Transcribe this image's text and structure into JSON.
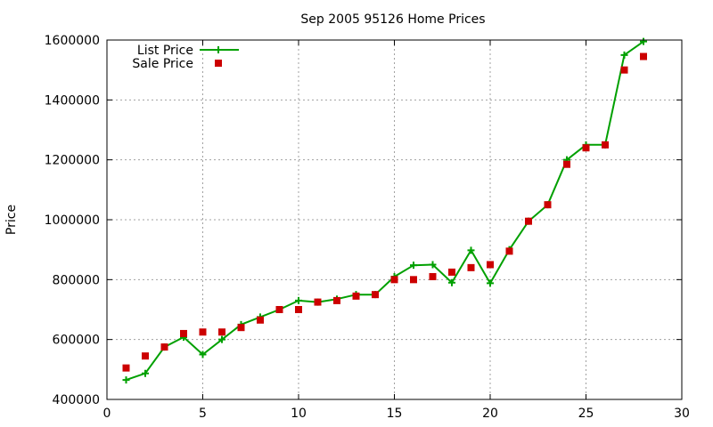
{
  "chart_data": {
    "type": "line",
    "title": "Sep 2005 95126 Home Prices",
    "xlabel": "",
    "ylabel": "Price",
    "xlim": [
      0,
      30
    ],
    "ylim": [
      400000,
      1600000
    ],
    "x_ticks": [
      0,
      5,
      10,
      15,
      20,
      25,
      30
    ],
    "y_ticks": [
      400000,
      600000,
      800000,
      1000000,
      1200000,
      1400000,
      1600000
    ],
    "grid": true,
    "legend_position": "top-left",
    "series": [
      {
        "name": "List Price",
        "style": "linespoints",
        "marker": "plus",
        "color": "#00a000",
        "x": [
          1,
          2,
          3,
          4,
          5,
          6,
          7,
          8,
          9,
          10,
          11,
          12,
          13,
          14,
          15,
          16,
          17,
          18,
          19,
          20,
          21,
          22,
          23,
          24,
          25,
          26,
          27,
          28
        ],
        "y": [
          465000,
          487000,
          575000,
          608000,
          550000,
          600000,
          650000,
          675000,
          700000,
          730000,
          725000,
          735000,
          750000,
          750000,
          810000,
          848000,
          850000,
          790000,
          898000,
          788000,
          900000,
          995000,
          1050000,
          1200000,
          1250000,
          1250000,
          1550000,
          1595000
        ]
      },
      {
        "name": "Sale Price",
        "style": "points",
        "marker": "square",
        "color": "#cc0000",
        "x": [
          1,
          2,
          3,
          4,
          5,
          6,
          7,
          8,
          9,
          10,
          11,
          12,
          13,
          14,
          15,
          16,
          17,
          18,
          19,
          20,
          21,
          22,
          23,
          24,
          25,
          26,
          27,
          28
        ],
        "y": [
          505000,
          545000,
          575000,
          620000,
          625000,
          625000,
          640000,
          665000,
          700000,
          700000,
          725000,
          730000,
          745000,
          750000,
          800000,
          800000,
          810000,
          825000,
          840000,
          850000,
          895000,
          995000,
          1050000,
          1185000,
          1240000,
          1250000,
          1500000,
          1545000
        ]
      }
    ]
  }
}
